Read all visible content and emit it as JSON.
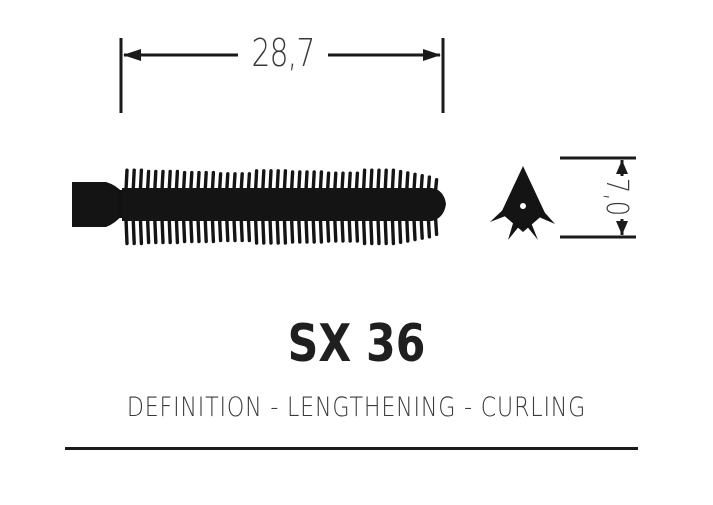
{
  "dimensions": {
    "length_label": "28,7",
    "diameter_label": "7,0"
  },
  "product": {
    "title": "SX 36",
    "subtitle": "DEFINITION - LENGTHENING - CURLING"
  },
  "colors": {
    "ink": "#1a1a1a",
    "brush": "#141414",
    "text": "#3a3a3a"
  },
  "icons": {
    "side_view": "mascara-brush-side-icon",
    "end_view": "mascara-brush-end-icon"
  }
}
